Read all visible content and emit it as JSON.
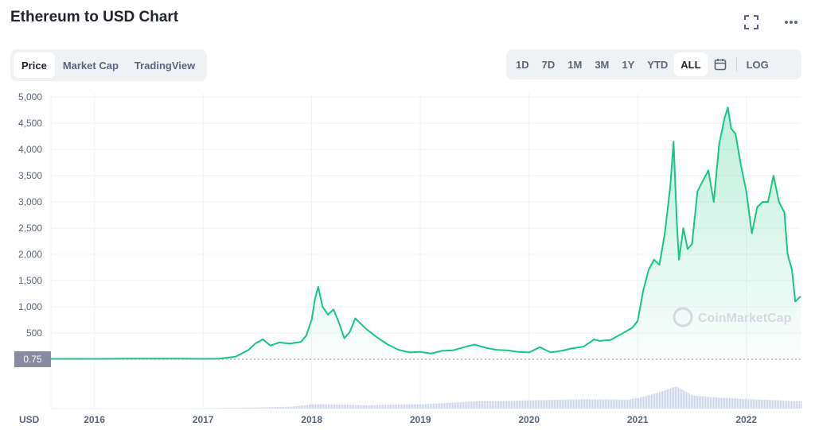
{
  "header": {
    "title": "Ethereum to USD Chart"
  },
  "icons": {
    "fullscreen": "fullscreen-icon",
    "more": "more-icon",
    "calendar": "calendar-icon"
  },
  "tabs": [
    {
      "label": "Price",
      "active": true
    },
    {
      "label": "Market Cap",
      "active": false
    },
    {
      "label": "TradingView",
      "active": false
    }
  ],
  "ranges": [
    {
      "label": "1D",
      "active": false
    },
    {
      "label": "7D",
      "active": false
    },
    {
      "label": "1M",
      "active": false
    },
    {
      "label": "3M",
      "active": false
    },
    {
      "label": "1Y",
      "active": false
    },
    {
      "label": "YTD",
      "active": false
    },
    {
      "label": "ALL",
      "active": true
    }
  ],
  "log_label": "LOG",
  "watermark": "CoinMarketCap",
  "colors": {
    "line": "#16c784",
    "price_tag_bg": "#858ca2",
    "volume": "#cfd6e4",
    "text": "#58667e"
  },
  "chart_data": {
    "type": "area",
    "currency_label": "USD",
    "ylim": [
      0,
      5000
    ],
    "yticks": [
      500,
      1000,
      1500,
      2000,
      2500,
      3000,
      3500,
      4000,
      4500,
      5000
    ],
    "ytick_labels": [
      "500",
      "1,000",
      "1,500",
      "2,000",
      "2,500",
      "3,000",
      "3,500",
      "4,000",
      "4,500",
      "5,000"
    ],
    "xticks": [
      2016,
      2017,
      2018,
      2019,
      2020,
      2021,
      2022
    ],
    "xtick_labels": [
      "2016",
      "2017",
      "2018",
      "2019",
      "2020",
      "2021",
      "2022"
    ],
    "xlim": [
      2015.6,
      2022.5
    ],
    "current_price_label": "0.75",
    "current_price": 0.75,
    "grid": true,
    "series": [
      {
        "x": [
          2015.6,
          2016.0,
          2016.3,
          2016.5,
          2016.8,
          2017.0,
          2017.15,
          2017.3,
          2017.42,
          2017.48,
          2017.55,
          2017.62,
          2017.7,
          2017.8,
          2017.9,
          2017.95,
          2018.0,
          2018.03,
          2018.06,
          2018.1,
          2018.15,
          2018.2,
          2018.25,
          2018.3,
          2018.35,
          2018.4,
          2018.5,
          2018.6,
          2018.7,
          2018.8,
          2018.9,
          2019.0,
          2019.1,
          2019.2,
          2019.3,
          2019.4,
          2019.5,
          2019.6,
          2019.7,
          2019.8,
          2019.9,
          2020.0,
          2020.1,
          2020.15,
          2020.2,
          2020.3,
          2020.4,
          2020.5,
          2020.6,
          2020.65,
          2020.75,
          2020.85,
          2020.95,
          2021.0,
          2021.05,
          2021.1,
          2021.15,
          2021.2,
          2021.25,
          2021.3,
          2021.33,
          2021.36,
          2021.38,
          2021.42,
          2021.46,
          2021.5,
          2021.55,
          2021.6,
          2021.65,
          2021.7,
          2021.75,
          2021.8,
          2021.83,
          2021.86,
          2021.9,
          2021.95,
          2022.0,
          2022.05,
          2022.1,
          2022.15,
          2022.2,
          2022.25,
          2022.3,
          2022.35,
          2022.38,
          2022.42,
          2022.45,
          2022.5
        ],
        "y": [
          1,
          1,
          10,
          12,
          10,
          8,
          12,
          50,
          180,
          300,
          380,
          260,
          320,
          300,
          330,
          450,
          760,
          1150,
          1380,
          1000,
          850,
          950,
          700,
          400,
          520,
          780,
          580,
          420,
          280,
          180,
          130,
          140,
          110,
          160,
          170,
          230,
          280,
          220,
          180,
          170,
          140,
          130,
          230,
          180,
          130,
          160,
          210,
          240,
          380,
          350,
          370,
          480,
          600,
          730,
          1300,
          1700,
          1900,
          1800,
          2400,
          3300,
          4150,
          2600,
          1900,
          2500,
          2100,
          2200,
          3200,
          3400,
          3600,
          3000,
          4100,
          4600,
          4800,
          4400,
          4300,
          3700,
          3200,
          2400,
          2900,
          3000,
          3000,
          3500,
          3000,
          2800,
          2000,
          1700,
          1100,
          1200
        ]
      }
    ],
    "volume": {
      "x": [
        2015.6,
        2016.0,
        2016.5,
        2017.0,
        2017.4,
        2017.8,
        2018.0,
        2018.5,
        2019.0,
        2019.5,
        2020.0,
        2020.5,
        2020.9,
        2021.0,
        2021.2,
        2021.35,
        2021.5,
        2021.8,
        2022.0,
        2022.3,
        2022.5
      ],
      "y": [
        0,
        0,
        0,
        1,
        4,
        8,
        18,
        14,
        18,
        30,
        35,
        40,
        38,
        45,
        70,
        95,
        55,
        45,
        40,
        35,
        30
      ]
    }
  }
}
